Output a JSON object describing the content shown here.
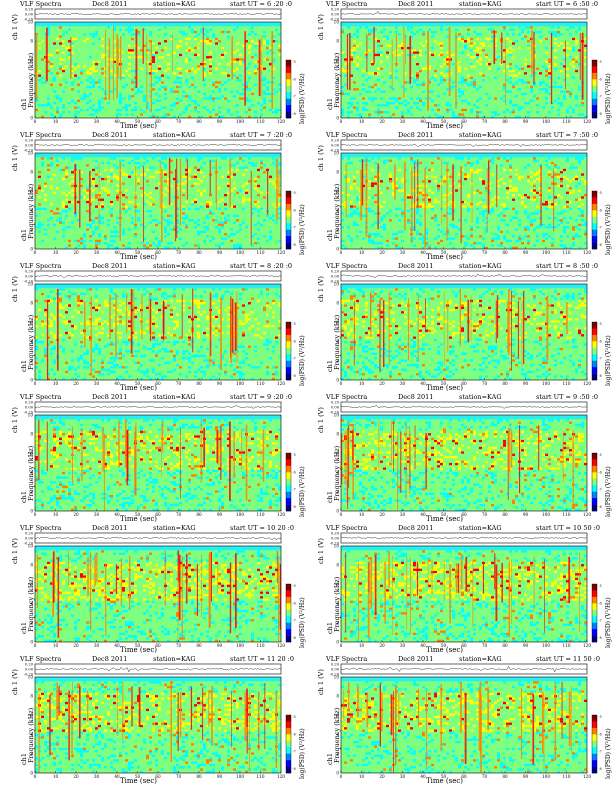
{
  "colors": {
    "colormap": [
      "#00007f",
      "#0000ff",
      "#0080ff",
      "#00ffff",
      "#7fff7f",
      "#ffff00",
      "#ff8000",
      "#ff0000",
      "#7f0000"
    ],
    "background_band": "#28f0f0",
    "trace": "#000000"
  },
  "shared": {
    "plot_title": "VLF Spectra",
    "date": "Dec8 2011",
    "station": "station=KAG",
    "xlabel": "Time (sec)",
    "ch_ylabel": "ch 1 (V)",
    "freq_ch_label": "ch1",
    "freq_ylabel": "Frequency (kHz)",
    "colorbar_label": "log(PSD) (V²/Hz)"
  },
  "chart_data": [
    {
      "type": "heatmap",
      "start": "start UT = 6 :20 :0",
      "time_range": [
        0,
        120
      ],
      "freq_range": [
        0,
        10
      ],
      "ch_range": [
        -0.2,
        0.2
      ],
      "activity": 0.35
    },
    {
      "type": "heatmap",
      "start": "start UT = 6 :50 :0",
      "time_range": [
        0,
        120
      ],
      "freq_range": [
        0,
        10
      ],
      "ch_range": [
        -0.2,
        0.2
      ],
      "activity": 0.35
    },
    {
      "type": "heatmap",
      "start": "start UT = 7 :20 :0",
      "time_range": [
        0,
        120
      ],
      "freq_range": [
        0,
        10
      ],
      "ch_range": [
        -0.2,
        0.2
      ],
      "activity": 0.4
    },
    {
      "type": "heatmap",
      "start": "start UT = 7 :50 :0",
      "time_range": [
        0,
        120
      ],
      "freq_range": [
        0,
        10
      ],
      "ch_range": [
        -0.2,
        0.2
      ],
      "activity": 0.4
    },
    {
      "type": "heatmap",
      "start": "start UT = 8 :20 :0",
      "time_range": [
        0,
        120
      ],
      "freq_range": [
        0,
        10
      ],
      "ch_range": [
        -0.2,
        0.2
      ],
      "activity": 0.45
    },
    {
      "type": "heatmap",
      "start": "start UT = 8 :50 :0",
      "time_range": [
        0,
        120
      ],
      "freq_range": [
        0,
        10
      ],
      "ch_range": [
        -0.2,
        0.2
      ],
      "activity": 0.45
    },
    {
      "type": "heatmap",
      "start": "start UT = 9 :20 :0",
      "time_range": [
        0,
        120
      ],
      "freq_range": [
        0,
        10
      ],
      "ch_range": [
        -0.2,
        0.2
      ],
      "activity": 0.55
    },
    {
      "type": "heatmap",
      "start": "start UT = 9 :50 :0",
      "time_range": [
        0,
        120
      ],
      "freq_range": [
        0,
        10
      ],
      "ch_range": [
        -0.2,
        0.2
      ],
      "activity": 0.6
    },
    {
      "type": "heatmap",
      "start": "start UT = 10 20 :0",
      "time_range": [
        0,
        120
      ],
      "freq_range": [
        0,
        10
      ],
      "ch_range": [
        -0.2,
        0.2
      ],
      "activity": 0.7
    },
    {
      "type": "heatmap",
      "start": "start UT = 10 50 :0",
      "time_range": [
        0,
        120
      ],
      "freq_range": [
        0,
        10
      ],
      "ch_range": [
        -0.2,
        0.2
      ],
      "activity": 0.7
    },
    {
      "type": "heatmap",
      "start": "start UT = 11 20 :0",
      "time_range": [
        0,
        120
      ],
      "freq_range": [
        0,
        10
      ],
      "ch_range": [
        -0.2,
        0.2
      ],
      "activity": 0.6
    },
    {
      "type": "heatmap",
      "start": "start UT = 11 50 :0",
      "time_range": [
        0,
        120
      ],
      "freq_range": [
        0,
        10
      ],
      "ch_range": [
        -0.2,
        0.2
      ],
      "activity": 0.6
    }
  ],
  "axes": {
    "x_ticks": [
      "0",
      "10",
      "20",
      "30",
      "40",
      "50",
      "60",
      "70",
      "80",
      "90",
      "100",
      "110",
      "120"
    ],
    "freq_ticks": [
      "0",
      "2",
      "4",
      "6",
      "8",
      "10"
    ],
    "ch_ticks": [
      "-0.20",
      "0.00",
      "0.20"
    ],
    "cb_ticks": [
      "-5",
      "-6",
      "-7",
      "-8"
    ]
  }
}
